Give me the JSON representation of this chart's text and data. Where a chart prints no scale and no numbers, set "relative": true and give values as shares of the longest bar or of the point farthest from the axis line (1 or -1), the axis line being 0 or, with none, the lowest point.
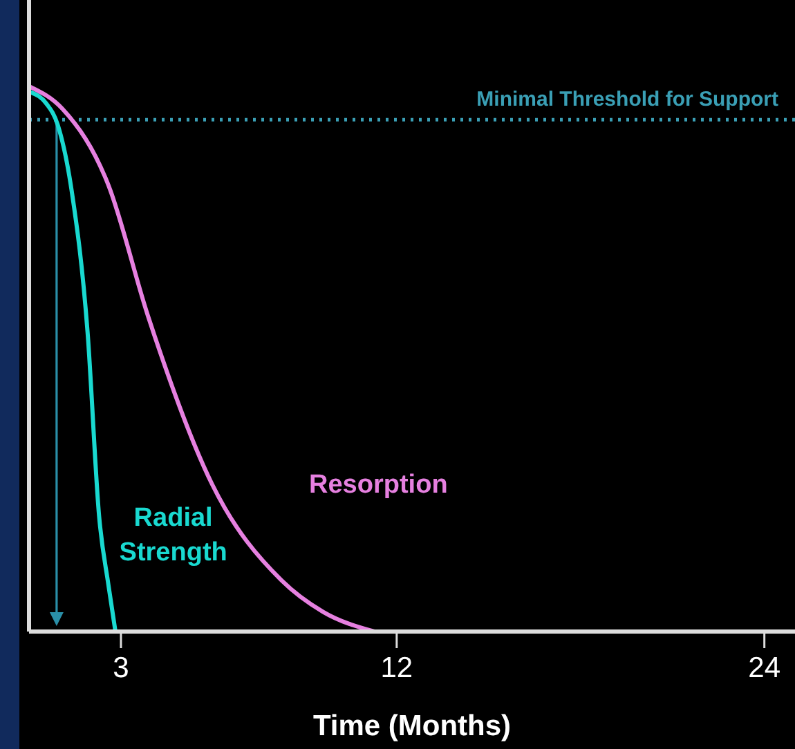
{
  "chart_data": {
    "type": "line",
    "relative": true,
    "xlabel": "Time (Months)",
    "xlim": [
      0,
      25
    ],
    "xticks": [
      3,
      12,
      24
    ],
    "grid": false,
    "marker": "none",
    "line_style": "solid",
    "series": [
      {
        "name": "Radial Strength",
        "color": "#19d9d0",
        "x": [
          0.08,
          0.56,
          0.94,
          1.39,
          1.91,
          2.29,
          2.59,
          2.82
        ],
        "values": [
          0.99,
          0.97,
          0.93,
          0.81,
          0.55,
          0.21,
          0.086,
          0
        ]
      },
      {
        "name": "Resorption",
        "color": "#e680e0",
        "x": [
          0.05,
          1.09,
          2.59,
          3.88,
          5.98,
          8.24,
          9.6,
          11.27
        ],
        "values": [
          1,
          0.96,
          0.82,
          0.58,
          0.27,
          0.094,
          0.036,
          0
        ]
      }
    ],
    "ref_lines": [
      {
        "axis": "y",
        "value": 0.94,
        "label": "Minimal Threshold for Support",
        "color": "#3a9fb5",
        "line_style": "dotted"
      }
    ]
  }
}
